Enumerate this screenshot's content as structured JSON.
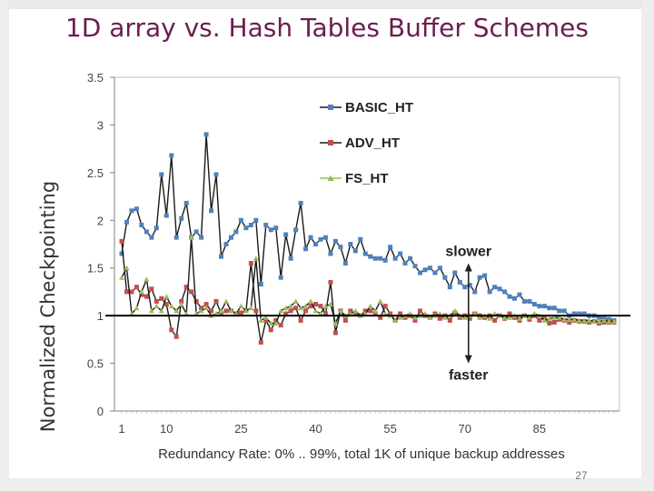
{
  "slide": {
    "title": "1D array vs. Hash Tables Buffer Schemes",
    "number": "27"
  },
  "chart_data": {
    "type": "line",
    "title": "",
    "xlabel": "Redundancy Rate: 0% .. 99%, total 1K of unique backup addresses",
    "ylabel": "Normalized Checkpointing",
    "xlim": [
      0,
      100
    ],
    "ylim": [
      0,
      3.5
    ],
    "grid": false,
    "legend_position": "top-center",
    "x_ticks": [
      1,
      10,
      25,
      40,
      55,
      70,
      85
    ],
    "y_ticks": [
      "0",
      "0.5",
      "1",
      "1.5",
      "2",
      "2.5",
      "3",
      "3.5"
    ],
    "reference_line": 1,
    "annotations": [
      {
        "label": "slower",
        "direction": "up"
      },
      {
        "label": "faster",
        "direction": "down"
      }
    ],
    "x": [
      1,
      2,
      3,
      4,
      5,
      6,
      7,
      8,
      9,
      10,
      11,
      12,
      13,
      14,
      15,
      16,
      17,
      18,
      19,
      20,
      21,
      22,
      23,
      24,
      25,
      26,
      27,
      28,
      29,
      30,
      31,
      32,
      33,
      34,
      35,
      36,
      37,
      38,
      39,
      40,
      41,
      42,
      43,
      44,
      45,
      46,
      47,
      48,
      49,
      50,
      51,
      52,
      53,
      54,
      55,
      56,
      57,
      58,
      59,
      60,
      61,
      62,
      63,
      64,
      65,
      66,
      67,
      68,
      69,
      70,
      71,
      72,
      73,
      74,
      75,
      76,
      77,
      78,
      79,
      80,
      81,
      82,
      83,
      84,
      85,
      86,
      87,
      88,
      89,
      90,
      91,
      92,
      93,
      94,
      95,
      96,
      97,
      98,
      99,
      100
    ],
    "series": [
      {
        "name": "BASIC_HT",
        "color": "#4f81bd",
        "marker": "square",
        "values": [
          1.65,
          1.98,
          2.1,
          2.12,
          1.95,
          1.88,
          1.82,
          1.92,
          2.48,
          2.05,
          2.68,
          1.82,
          2.02,
          2.18,
          1.82,
          1.88,
          1.82,
          2.9,
          2.1,
          2.48,
          1.62,
          1.75,
          1.82,
          1.88,
          2.0,
          1.92,
          1.95,
          2.0,
          1.33,
          1.95,
          1.9,
          1.92,
          1.4,
          1.85,
          1.6,
          1.9,
          2.18,
          1.7,
          1.82,
          1.75,
          1.8,
          1.82,
          1.65,
          1.78,
          1.72,
          1.55,
          1.75,
          1.68,
          1.8,
          1.65,
          1.62,
          1.6,
          1.6,
          1.58,
          1.72,
          1.6,
          1.65,
          1.55,
          1.6,
          1.52,
          1.45,
          1.48,
          1.5,
          1.45,
          1.5,
          1.4,
          1.3,
          1.45,
          1.35,
          1.3,
          1.32,
          1.25,
          1.4,
          1.42,
          1.25,
          1.3,
          1.28,
          1.25,
          1.2,
          1.18,
          1.22,
          1.15,
          1.15,
          1.12,
          1.1,
          1.1,
          1.08,
          1.08,
          1.05,
          1.05,
          1.0,
          1.02,
          1.02,
          1.02,
          1.0,
          1.0,
          0.98,
          0.97,
          0.96,
          0.95
        ]
      },
      {
        "name": "ADV_HT",
        "color": "#c0504d",
        "marker": "square",
        "values": [
          1.78,
          1.25,
          1.25,
          1.3,
          1.22,
          1.2,
          1.28,
          1.15,
          1.18,
          1.12,
          0.85,
          0.78,
          1.15,
          1.3,
          1.25,
          1.15,
          1.08,
          1.12,
          1.05,
          1.15,
          1.02,
          1.05,
          1.05,
          1.02,
          1.03,
          1.05,
          1.55,
          1.05,
          0.72,
          0.95,
          0.85,
          0.95,
          0.9,
          1.02,
          1.05,
          1.08,
          0.95,
          1.05,
          1.1,
          1.12,
          1.1,
          1.02,
          1.35,
          0.82,
          1.05,
          0.95,
          1.05,
          1.02,
          1.0,
          1.05,
          1.05,
          1.02,
          0.98,
          1.1,
          1.02,
          0.95,
          1.02,
          0.98,
          1.0,
          0.95,
          1.05,
          1.0,
          0.98,
          1.02,
          0.97,
          1.0,
          0.95,
          1.03,
          0.98,
          1.0,
          0.97,
          1.02,
          1.0,
          0.98,
          1.0,
          0.95,
          1.0,
          0.97,
          1.02,
          0.98,
          0.95,
          1.0,
          0.96,
          1.0,
          0.95,
          0.98,
          0.92,
          0.93,
          0.96,
          0.95,
          0.93,
          0.95,
          0.94,
          0.94,
          0.93,
          0.94,
          0.92,
          0.93,
          0.93,
          0.93
        ]
      },
      {
        "name": "FS_HT",
        "color": "#9bbb59",
        "marker": "triangle",
        "values": [
          1.4,
          1.5,
          1.02,
          1.08,
          1.25,
          1.38,
          1.05,
          1.1,
          1.05,
          1.2,
          1.1,
          1.05,
          1.12,
          1.02,
          1.82,
          1.02,
          1.05,
          1.08,
          1.0,
          1.02,
          1.05,
          1.15,
          1.05,
          1.02,
          1.1,
          1.05,
          1.08,
          1.6,
          0.95,
          0.98,
          0.92,
          0.92,
          1.05,
          1.08,
          1.1,
          1.15,
          1.08,
          1.1,
          1.15,
          1.05,
          1.02,
          1.1,
          1.12,
          0.92,
          1.05,
          1.0,
          1.02,
          1.05,
          1.0,
          1.02,
          1.1,
          1.05,
          1.15,
          1.02,
          1.0,
          0.95,
          0.98,
          1.0,
          1.02,
          0.98,
          1.0,
          1.02,
          0.98,
          1.0,
          1.02,
          0.98,
          1.0,
          1.05,
          1.0,
          0.98,
          1.0,
          1.02,
          0.98,
          1.0,
          0.97,
          1.02,
          1.0,
          0.98,
          0.98,
          1.0,
          0.97,
          1.0,
          0.98,
          1.02,
          1.0,
          0.95,
          0.97,
          0.98,
          0.98,
          0.96,
          0.96,
          0.96,
          0.95,
          0.95,
          0.95,
          0.94,
          0.94,
          0.95,
          0.94,
          0.94
        ]
      }
    ]
  }
}
